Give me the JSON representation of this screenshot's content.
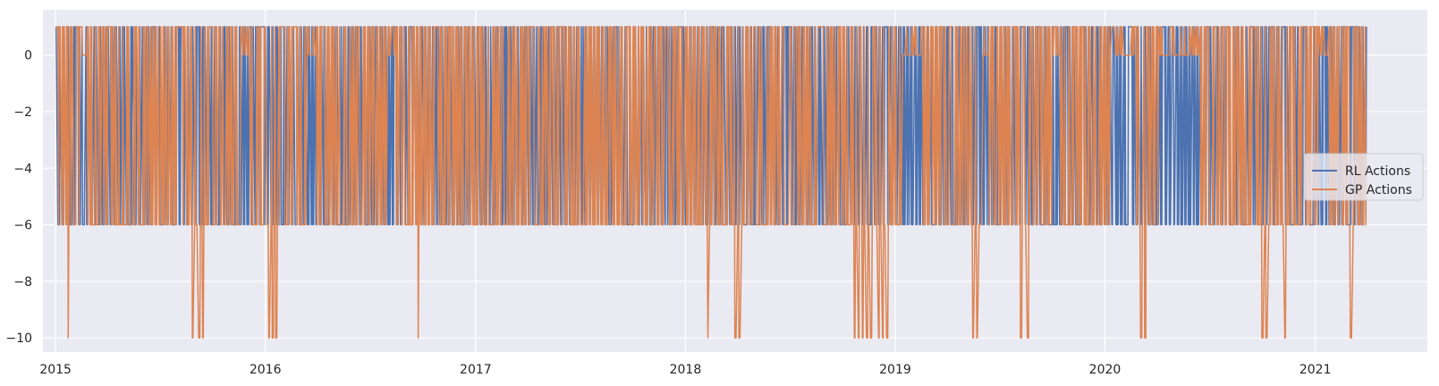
{
  "chart_data": {
    "type": "line",
    "title": "",
    "xlabel": "",
    "ylabel": "",
    "xlim": [
      "2014-12-10",
      "2021-07-15"
    ],
    "ylim": [
      -10.5,
      1.6
    ],
    "xticks": [
      "2015",
      "2016",
      "2017",
      "2018",
      "2019",
      "2020",
      "2021"
    ],
    "yticks": [
      0,
      -2,
      -4,
      -6,
      -8,
      -10
    ],
    "ytick_labels": [
      "0",
      "−2",
      "−4",
      "−6",
      "−8",
      "−10"
    ],
    "grid": true,
    "legend_position": "center-right",
    "x_range": [
      "2015-01-02",
      "2021-03-31"
    ],
    "series": [
      {
        "name": "RL Actions",
        "color": "#4c72b0",
        "levels": [
          1,
          -6
        ],
        "pattern": "oscillates between 1 and -6 on nearly every trading day"
      },
      {
        "name": "GP Actions",
        "color": "#dd8452",
        "levels": [
          1,
          0,
          -6,
          -10
        ],
        "pattern": "mostly oscillates between 1 and -6, with short stretches at 0 and dips to -10",
        "dips_to_minus_10": [
          "2015-01-24",
          "2015-08-28",
          "2015-09-08",
          "2015-09-14",
          "2016-01-08",
          "2016-01-14",
          "2016-01-20",
          "2016-09-24",
          "2018-02-10",
          "2018-03-29",
          "2018-04-05",
          "2018-10-22",
          "2018-10-29",
          "2018-11-05",
          "2018-11-13",
          "2018-11-20",
          "2018-12-03",
          "2018-12-10",
          "2018-12-18",
          "2019-05-17",
          "2019-05-24",
          "2019-08-08",
          "2019-08-20",
          "2020-03-04",
          "2020-03-11",
          "2020-10-01",
          "2020-10-08",
          "2020-11-09",
          "2021-03-04"
        ],
        "zero_stretches": [
          [
            "2015-02-12",
            "2015-02-24"
          ],
          [
            "2015-11-20",
            "2015-12-05"
          ],
          [
            "2016-03-15",
            "2016-03-30"
          ],
          [
            "2016-08-01",
            "2016-08-14"
          ],
          [
            "2019-01-14",
            "2019-02-15"
          ],
          [
            "2019-06-01",
            "2019-06-12"
          ],
          [
            "2019-10-02",
            "2019-10-15"
          ],
          [
            "2020-01-10",
            "2020-02-20"
          ],
          [
            "2020-04-06",
            "2020-06-15"
          ],
          [
            "2021-01-06",
            "2021-01-22"
          ]
        ]
      }
    ]
  }
}
